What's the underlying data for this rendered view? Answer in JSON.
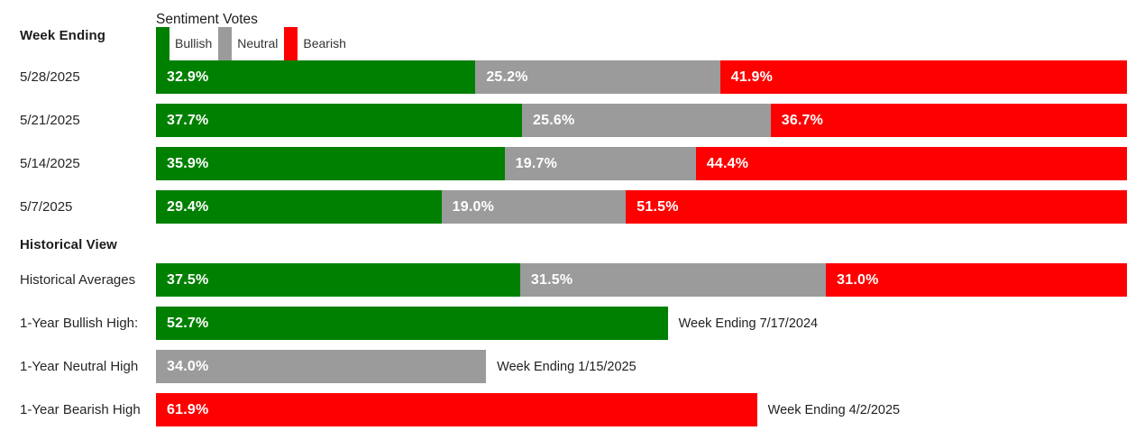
{
  "colors": {
    "bullish": "#008000",
    "neutral": "#9b9b9b",
    "bearish": "#ff0000"
  },
  "header": {
    "week_ending_label": "Week Ending",
    "chart_title": "Sentiment Votes",
    "legend": [
      {
        "label": "Bullish"
      },
      {
        "label": "Neutral"
      },
      {
        "label": "Bearish"
      }
    ]
  },
  "weekly_rows": [
    {
      "label": "5/28/2025",
      "segments": [
        {
          "text": "32.9%",
          "width": 32.9
        },
        {
          "text": "25.2%",
          "width": 25.2
        },
        {
          "text": "41.9%",
          "width": 41.9
        }
      ]
    },
    {
      "label": "5/21/2025",
      "segments": [
        {
          "text": "37.7%",
          "width": 37.7
        },
        {
          "text": "25.6%",
          "width": 25.6
        },
        {
          "text": "36.7%",
          "width": 36.7
        }
      ]
    },
    {
      "label": "5/14/2025",
      "segments": [
        {
          "text": "35.9%",
          "width": 35.9
        },
        {
          "text": "19.7%",
          "width": 19.7
        },
        {
          "text": "44.4%",
          "width": 44.4
        }
      ]
    },
    {
      "label": "5/7/2025",
      "segments": [
        {
          "text": "29.4%",
          "width": 29.4
        },
        {
          "text": "19.0%",
          "width": 19.0
        },
        {
          "text": "51.5%",
          "width": 51.5
        }
      ]
    }
  ],
  "historical": {
    "section_title": "Historical View",
    "averages_row": {
      "label": "Historical Averages",
      "segments": [
        {
          "text": "37.5%",
          "width": 37.5
        },
        {
          "text": "31.5%",
          "width": 31.5
        },
        {
          "text": "31.0%",
          "width": 31.0
        }
      ]
    },
    "high_rows": [
      {
        "label": "1-Year Bullish High:",
        "text": "52.7%",
        "width": 52.7,
        "annotation": "Week Ending 7/17/2024"
      },
      {
        "label": "1-Year Neutral High",
        "text": "34.0%",
        "width": 34.0,
        "annotation": "Week Ending 1/15/2025"
      },
      {
        "label": "1-Year Bearish High",
        "text": "61.9%",
        "width": 61.9,
        "annotation": "Week Ending 4/2/2025"
      }
    ]
  },
  "chart_data": {
    "type": "bar",
    "orientation": "horizontal",
    "stacked": true,
    "title": "Sentiment Votes",
    "categories": [
      "5/28/2025",
      "5/21/2025",
      "5/14/2025",
      "5/7/2025"
    ],
    "series": [
      {
        "name": "Bullish",
        "color": "#008000",
        "values": [
          32.9,
          37.7,
          35.9,
          29.4
        ]
      },
      {
        "name": "Neutral",
        "color": "#9b9b9b",
        "values": [
          25.2,
          25.6,
          19.7,
          19.0
        ]
      },
      {
        "name": "Bearish",
        "color": "#ff0000",
        "values": [
          41.9,
          36.7,
          44.4,
          51.5
        ]
      }
    ],
    "xlim": [
      0,
      100
    ],
    "unit": "%",
    "legend_position": "top",
    "grid": false,
    "historical": {
      "averages": {
        "bullish": 37.5,
        "neutral": 31.5,
        "bearish": 31.0
      },
      "one_year_bullish_high": {
        "value": 52.7,
        "week_ending": "7/17/2024"
      },
      "one_year_neutral_high": {
        "value": 34.0,
        "week_ending": "1/15/2025"
      },
      "one_year_bearish_high": {
        "value": 61.9,
        "week_ending": "4/2/2025"
      }
    }
  }
}
